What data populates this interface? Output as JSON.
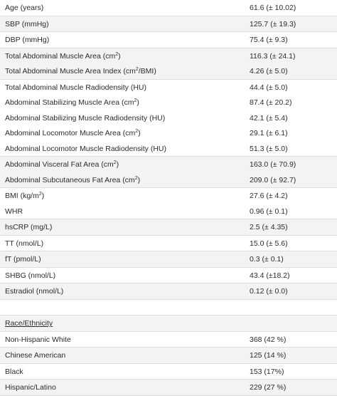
{
  "groups": [
    {
      "shade": false,
      "rows": [
        {
          "label": "Age (years)",
          "value": "61.6 (± 10.02)"
        }
      ]
    },
    {
      "shade": true,
      "rows": [
        {
          "label": "SBP (mmHg)",
          "value": "125.7 (± 19.3)"
        }
      ]
    },
    {
      "shade": false,
      "rows": [
        {
          "label": "DBP (mmHg)",
          "value": "75.4 (± 9.3)"
        }
      ]
    },
    {
      "shade": true,
      "rows": [
        {
          "label": "Total Abdominal Muscle Area (cm",
          "sup": "2",
          "tail": ")",
          "value": "116.3 (± 24.1)"
        },
        {
          "label": "Total Abdominal Muscle Area Index (cm",
          "sup": "2",
          "tail": "/BMI)",
          "value": "4.26 (± 5.0)"
        }
      ]
    },
    {
      "shade": false,
      "rows": [
        {
          "label": "Total Abdominal Muscle Radiodensity (HU)",
          "value": "44.4 (± 5.0)"
        },
        {
          "label": "Abdominal Stabilizing Muscle Area (cm",
          "sup": "2",
          "tail": ")",
          "value": "87.4 (± 20.2)"
        },
        {
          "label": "Abdominal Stabilizing Muscle Radiodensity (HU)",
          "value": "42.1 (± 5.4)"
        },
        {
          "label": "Abdominal Locomotor Muscle Area (cm",
          "sup": "2",
          "tail": ")",
          "value": "29.1 (± 6.1)"
        },
        {
          "label": "Abdominal Locomotor Muscle Radiodensity (HU)",
          "value": "51.3 (± 5.0)"
        }
      ]
    },
    {
      "shade": true,
      "rows": [
        {
          "label": "Abdominal Visceral Fat Area (cm",
          "sup": "2",
          "tail": ")",
          "value": "163.0 (± 70.9)"
        },
        {
          "label": "Abdominal Subcutaneous Fat Area (cm",
          "sup": "2",
          "tail": ")",
          "value": "209.0 (± 92.7)"
        }
      ]
    },
    {
      "shade": false,
      "rows": [
        {
          "label": "BMI (kg/m",
          "sup": "2",
          "tail": ")",
          "value": "27.6 (± 4.2)"
        },
        {
          "label": "WHR",
          "value": "0.96 (± 0.1)"
        }
      ]
    },
    {
      "shade": true,
      "rows": [
        {
          "label": "hsCRP (mg/L)",
          "value": "2.5 (± 4.35)"
        }
      ]
    },
    {
      "shade": false,
      "rows": [
        {
          "label": "TT (nmol/L)",
          "value": "15.0 (± 5.6)"
        }
      ]
    },
    {
      "shade": true,
      "rows": [
        {
          "label": "fT (pmol/L)",
          "value": "0.3 (± 0.1)"
        }
      ]
    },
    {
      "shade": false,
      "rows": [
        {
          "label": "SHBG (nmol/L)",
          "value": "43.4 (±18.2)"
        }
      ]
    },
    {
      "shade": true,
      "rows": [
        {
          "label": "Estradiol (nmol/L)",
          "value": "0.12 (± 0.0)"
        }
      ]
    },
    {
      "shade": false,
      "rows": [
        {
          "label": "",
          "value": ""
        }
      ]
    },
    {
      "shade": true,
      "rows": [
        {
          "label": "Race/Ethnicity",
          "value": "",
          "underline": true
        }
      ]
    },
    {
      "shade": false,
      "rows": [
        {
          "label": "Non-Hispanic White",
          "value": "368 (42 %)"
        }
      ]
    },
    {
      "shade": true,
      "rows": [
        {
          "label": "Chinese American",
          "value": "125 (14 %)"
        }
      ]
    },
    {
      "shade": false,
      "rows": [
        {
          "label": "Black",
          "value": "153 (17%)"
        }
      ]
    },
    {
      "shade": true,
      "rows": [
        {
          "label": "Hispanic/Latino",
          "value": "229 (27 %)"
        }
      ]
    }
  ]
}
